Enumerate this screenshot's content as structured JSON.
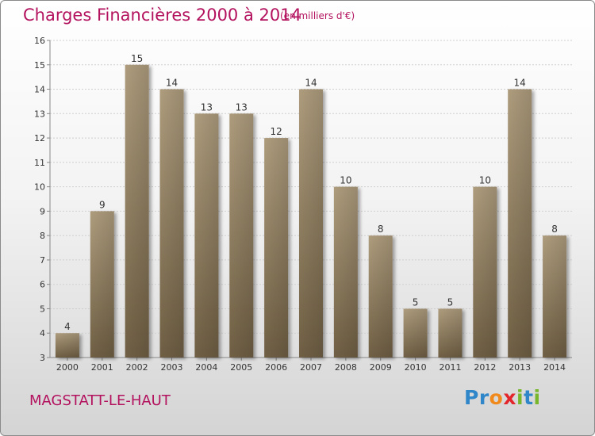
{
  "chart_data": {
    "type": "bar",
    "title": "Charges Financières 2000 à 2014",
    "subtitle": "(en milliers d'€)",
    "categories": [
      "2000",
      "2001",
      "2002",
      "2003",
      "2004",
      "2005",
      "2006",
      "2007",
      "2008",
      "2009",
      "2010",
      "2011",
      "2012",
      "2013",
      "2014"
    ],
    "values": [
      4,
      9,
      15,
      14,
      13,
      13,
      12,
      14,
      10,
      8,
      5,
      5,
      10,
      14,
      8
    ],
    "ylim": [
      3,
      16
    ],
    "yticks": [
      3,
      4,
      5,
      6,
      7,
      8,
      9,
      10,
      11,
      12,
      13,
      14,
      15,
      16
    ],
    "grid": true,
    "bar_color": "#8f7f62",
    "title_color": "#b3125e"
  },
  "footer": {
    "location": "MAGSTATT-LE-HAUT",
    "logo_text": "Proxiti",
    "logo_letters": [
      {
        "char": "P",
        "color": "#2f86c8"
      },
      {
        "char": "r",
        "color": "#2f86c8"
      },
      {
        "char": "o",
        "color": "#f08a1c"
      },
      {
        "char": "x",
        "color": "#e2262b"
      },
      {
        "char": "i",
        "color": "#78b62b"
      },
      {
        "char": "t",
        "color": "#2f86c8"
      },
      {
        "char": "i",
        "color": "#78b62b"
      }
    ]
  }
}
